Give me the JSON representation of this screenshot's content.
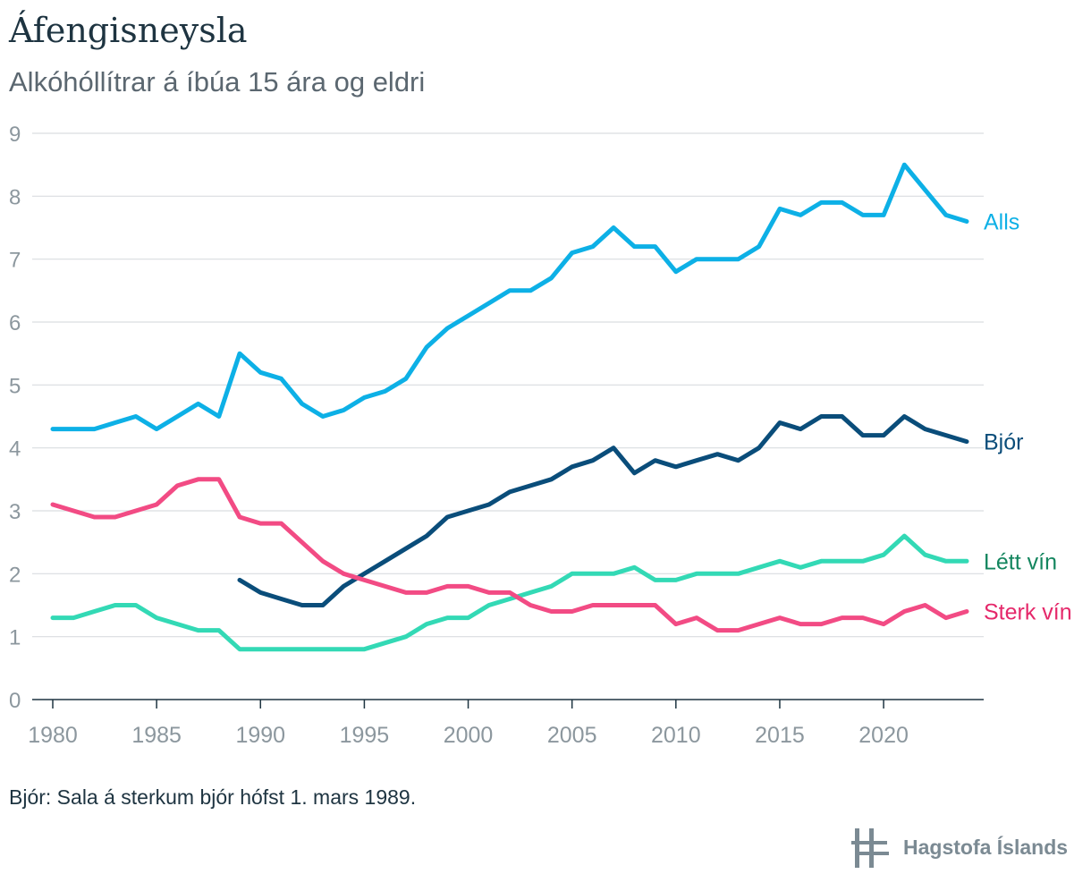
{
  "header": {
    "title": "Áfengisneysla",
    "subtitle": "Alkóhóllítrar á íbúa 15 ára og eldri"
  },
  "note": "Bjór: Sala á sterkum bjór hófst 1. mars 1989.",
  "logo": {
    "text": "Hagstofa Íslands",
    "icon": "hagstofa-logo-icon"
  },
  "chart_data": {
    "type": "line",
    "xlim": [
      1980,
      2024
    ],
    "ylim": [
      0,
      9
    ],
    "x_ticks": [
      1980,
      1985,
      1990,
      1995,
      2000,
      2005,
      2010,
      2015,
      2020
    ],
    "y_ticks": [
      0,
      1,
      2,
      3,
      4,
      5,
      6,
      7,
      8,
      9
    ],
    "grid": true,
    "legend_placement": "end-of-line labels (right)",
    "series": [
      {
        "name": "Alls",
        "color": "#0db0e6",
        "x": [
          1980,
          1981,
          1982,
          1983,
          1984,
          1985,
          1986,
          1987,
          1988,
          1989,
          1990,
          1991,
          1992,
          1993,
          1994,
          1995,
          1996,
          1997,
          1998,
          1999,
          2000,
          2001,
          2002,
          2003,
          2004,
          2005,
          2006,
          2007,
          2008,
          2009,
          2010,
          2011,
          2012,
          2013,
          2014,
          2015,
          2016,
          2017,
          2018,
          2019,
          2020,
          2021,
          2022,
          2023,
          2024
        ],
        "values": [
          4.3,
          4.3,
          4.3,
          4.4,
          4.5,
          4.3,
          4.5,
          4.7,
          4.5,
          5.5,
          5.2,
          5.1,
          4.7,
          4.5,
          4.6,
          4.8,
          4.9,
          5.1,
          5.6,
          5.9,
          6.1,
          6.3,
          6.5,
          6.5,
          6.7,
          7.1,
          7.2,
          7.5,
          7.2,
          7.2,
          6.8,
          7.0,
          7.0,
          7.0,
          7.2,
          7.8,
          7.7,
          7.9,
          7.9,
          7.7,
          7.7,
          8.5,
          8.1,
          7.7,
          7.6
        ]
      },
      {
        "name": "Bjór",
        "color": "#0a4d7a",
        "x": [
          1989,
          1990,
          1991,
          1992,
          1993,
          1994,
          1995,
          1996,
          1997,
          1998,
          1999,
          2000,
          2001,
          2002,
          2003,
          2004,
          2005,
          2006,
          2007,
          2008,
          2009,
          2010,
          2011,
          2012,
          2013,
          2014,
          2015,
          2016,
          2017,
          2018,
          2019,
          2020,
          2021,
          2022,
          2023,
          2024
        ],
        "values": [
          1.9,
          1.7,
          1.6,
          1.5,
          1.5,
          1.8,
          2.0,
          2.2,
          2.4,
          2.6,
          2.9,
          3.0,
          3.1,
          3.3,
          3.4,
          3.5,
          3.7,
          3.8,
          4.0,
          3.6,
          3.8,
          3.7,
          3.8,
          3.9,
          3.8,
          4.0,
          4.4,
          4.3,
          4.5,
          4.5,
          4.2,
          4.2,
          4.5,
          4.3,
          4.2,
          4.1
        ]
      },
      {
        "name": "Létt vín",
        "color": "#33d9b5",
        "label_color": "#13855e",
        "x": [
          1980,
          1981,
          1982,
          1983,
          1984,
          1985,
          1986,
          1987,
          1988,
          1989,
          1990,
          1991,
          1992,
          1993,
          1994,
          1995,
          1996,
          1997,
          1998,
          1999,
          2000,
          2001,
          2002,
          2003,
          2004,
          2005,
          2006,
          2007,
          2008,
          2009,
          2010,
          2011,
          2012,
          2013,
          2014,
          2015,
          2016,
          2017,
          2018,
          2019,
          2020,
          2021,
          2022,
          2023,
          2024
        ],
        "values": [
          1.3,
          1.3,
          1.4,
          1.5,
          1.5,
          1.3,
          1.2,
          1.1,
          1.1,
          0.8,
          0.8,
          0.8,
          0.8,
          0.8,
          0.8,
          0.8,
          0.9,
          1.0,
          1.2,
          1.3,
          1.3,
          1.5,
          1.6,
          1.7,
          1.8,
          2.0,
          2.0,
          2.0,
          2.1,
          1.9,
          1.9,
          2.0,
          2.0,
          2.0,
          2.1,
          2.2,
          2.1,
          2.2,
          2.2,
          2.2,
          2.3,
          2.6,
          2.3,
          2.2,
          2.2
        ]
      },
      {
        "name": "Sterk vín",
        "color": "#f24b84",
        "label_color": "#e5286a",
        "x": [
          1980,
          1981,
          1982,
          1983,
          1984,
          1985,
          1986,
          1987,
          1988,
          1989,
          1990,
          1991,
          1992,
          1993,
          1994,
          1995,
          1996,
          1997,
          1998,
          1999,
          2000,
          2001,
          2002,
          2003,
          2004,
          2005,
          2006,
          2007,
          2008,
          2009,
          2010,
          2011,
          2012,
          2013,
          2014,
          2015,
          2016,
          2017,
          2018,
          2019,
          2020,
          2021,
          2022,
          2023,
          2024
        ],
        "values": [
          3.1,
          3.0,
          2.9,
          2.9,
          3.0,
          3.1,
          3.4,
          3.5,
          3.5,
          2.9,
          2.8,
          2.8,
          2.5,
          2.2,
          2.0,
          1.9,
          1.8,
          1.7,
          1.7,
          1.8,
          1.8,
          1.7,
          1.7,
          1.5,
          1.4,
          1.4,
          1.5,
          1.5,
          1.5,
          1.5,
          1.2,
          1.3,
          1.1,
          1.1,
          1.2,
          1.3,
          1.2,
          1.2,
          1.3,
          1.3,
          1.2,
          1.4,
          1.5,
          1.3,
          1.4
        ]
      }
    ]
  }
}
